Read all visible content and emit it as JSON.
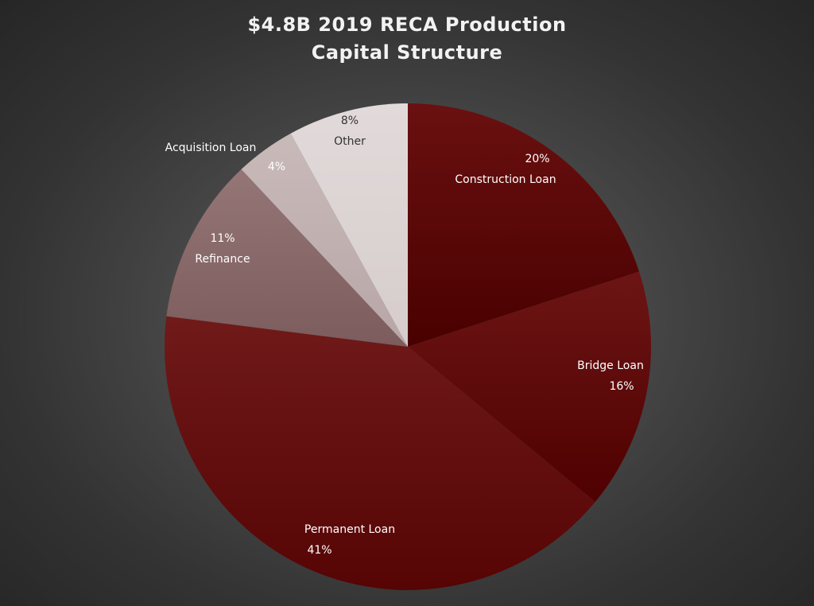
{
  "chart_data": {
    "type": "pie",
    "title": [
      "$4.8B 2019 RECA Production",
      "Capital  Structure"
    ],
    "slices": [
      {
        "name": "Construction Loan",
        "value": 20,
        "label": "20%",
        "color": "#4a0000",
        "color_light": "#6a1010",
        "label_color": "#ffffff",
        "label_order": "value-first"
      },
      {
        "name": "Bridge Loan",
        "value": 16,
        "label": "16%",
        "color": "#4f0000",
        "color_light": "#6d1515",
        "label_color": "#ffffff",
        "label_order": "name-first"
      },
      {
        "name": "Permanent Loan",
        "value": 41,
        "label": "41%",
        "color": "#560404",
        "color_light": "#701a1a",
        "label_color": "#ffffff",
        "label_order": "name-first"
      },
      {
        "name": "Refinance",
        "value": 11,
        "label": "11%",
        "color": "#7c5c5c",
        "color_light": "#957676",
        "label_color": "#ffffff",
        "label_order": "value-first"
      },
      {
        "name": "Acquisition Loan",
        "value": 4,
        "label": "4%",
        "color": "#b8a6a6",
        "color_light": "#c9baba",
        "label_color": "#ffffff",
        "label_order": "value-first"
      },
      {
        "name": "Other",
        "value": 8,
        "label": "8%",
        "color": "#d6cccc",
        "color_light": "#e2dada",
        "label_color": "#333333",
        "label_order": "value-first"
      }
    ]
  }
}
